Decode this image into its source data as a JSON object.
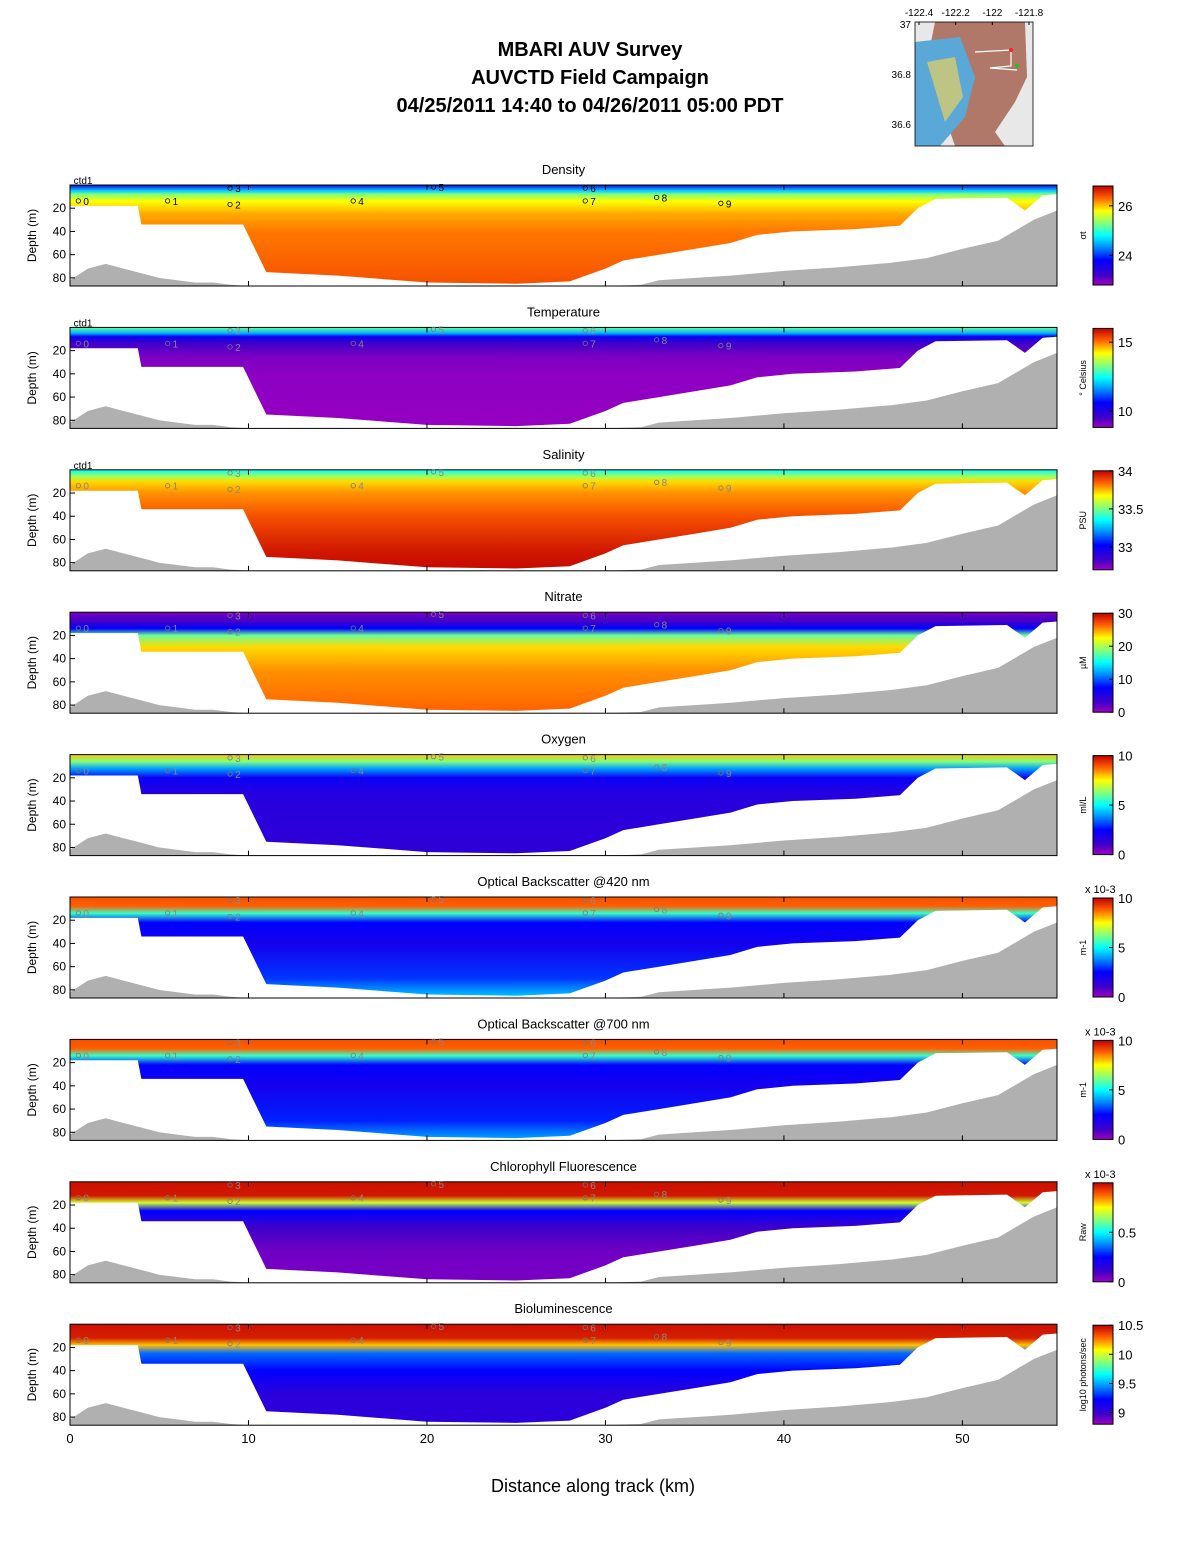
{
  "header": {
    "title_lines": [
      "MBARI AUV Survey",
      "AUVCTD Field Campaign",
      "04/25/2011 14:40  to 04/26/2011 05:00 PDT"
    ]
  },
  "inset_map": {
    "lon_ticks": [
      "-122.4",
      "-122.2",
      "-122",
      "-121.8"
    ],
    "lat_ticks": [
      "37",
      "36.8",
      "36.6"
    ]
  },
  "axes": {
    "ylabel": "Depth (m)",
    "xlabel": "Distance along track (km)",
    "xlim": [
      0,
      55.3
    ],
    "ylim": [
      0,
      87
    ],
    "x_ticks": [
      0,
      10,
      20,
      30,
      40,
      50
    ],
    "y_ticks": [
      20,
      40,
      60,
      80
    ]
  },
  "stations": [
    {
      "label": "ctd1",
      "km": 0.2,
      "depth": 0
    },
    {
      "label": "0",
      "km": 0.3,
      "depth": 12
    },
    {
      "label": "1",
      "km": 5.3,
      "depth": 12
    },
    {
      "label": "3",
      "km": 8.8,
      "depth": 1
    },
    {
      "label": "2",
      "km": 8.8,
      "depth": 15
    },
    {
      "label": "4",
      "km": 15.7,
      "depth": 12
    },
    {
      "label": "5",
      "km": 20.2,
      "depth": 0
    },
    {
      "label": "6",
      "km": 28.7,
      "depth": 1
    },
    {
      "label": "7",
      "km": 28.7,
      "depth": 12
    },
    {
      "label": "8",
      "km": 32.7,
      "depth": 9
    },
    {
      "label": "9",
      "km": 36.3,
      "depth": 14
    }
  ],
  "chart_data": [
    {
      "type": "heatmap",
      "title": "Density",
      "colorbar_label": "σt",
      "colorbar_ticks": [
        "26",
        "24"
      ],
      "colorbar_range": [
        22.8,
        26.8
      ]
    },
    {
      "type": "heatmap",
      "title": "Temperature",
      "colorbar_label": "° Celsius",
      "colorbar_ticks": [
        "15",
        "10"
      ],
      "colorbar_range": [
        8.8,
        16.0
      ]
    },
    {
      "type": "heatmap",
      "title": "Salinity",
      "colorbar_label": "PSU",
      "colorbar_ticks": [
        "34",
        "33.5",
        "33"
      ],
      "colorbar_range": [
        32.7,
        34.0
      ]
    },
    {
      "type": "heatmap",
      "title": "Nitrate",
      "colorbar_label": "µM",
      "colorbar_ticks": [
        "30",
        "20",
        "10",
        "0"
      ],
      "colorbar_range": [
        0,
        30
      ]
    },
    {
      "type": "heatmap",
      "title": "Oxygen",
      "colorbar_label": "ml/L",
      "colorbar_ticks": [
        "10",
        "5",
        "0"
      ],
      "colorbar_range": [
        0,
        10
      ]
    },
    {
      "type": "heatmap",
      "title": "Optical Backscatter @420 nm",
      "colorbar_label": "m-1",
      "colorbar_ticks": [
        "10",
        "5",
        "0"
      ],
      "colorbar_range": [
        0,
        10
      ],
      "colorbar_multiplier": "x 10-3"
    },
    {
      "type": "heatmap",
      "title": "Optical Backscatter @700 nm",
      "colorbar_label": "m-1",
      "colorbar_ticks": [
        "10",
        "5",
        "0"
      ],
      "colorbar_range": [
        0,
        10
      ],
      "colorbar_multiplier": "x 10-3"
    },
    {
      "type": "heatmap",
      "title": "Chlorophyll Fluorescence",
      "colorbar_label": "Raw",
      "colorbar_ticks": [
        "0.5",
        "0"
      ],
      "colorbar_range": [
        0,
        1.0
      ],
      "colorbar_multiplier": "x 10-3"
    },
    {
      "type": "heatmap",
      "title": "Bioluminescence",
      "colorbar_label": "log10 photons/sec",
      "colorbar_ticks": [
        "10.5",
        "10",
        "9.5",
        "9"
      ],
      "colorbar_range": [
        8.8,
        10.5
      ]
    }
  ],
  "survey_bottom_depth": [
    [
      0,
      18
    ],
    [
      3.8,
      18
    ],
    [
      4.0,
      34
    ],
    [
      9.7,
      34
    ],
    [
      11.0,
      75
    ],
    [
      15.0,
      78
    ],
    [
      20.0,
      84
    ],
    [
      25.0,
      85
    ],
    [
      28.0,
      83
    ],
    [
      30.0,
      72
    ],
    [
      31.0,
      65
    ],
    [
      33.0,
      60
    ],
    [
      35.0,
      55
    ],
    [
      37.0,
      50
    ],
    [
      38.5,
      43
    ],
    [
      40.5,
      40
    ],
    [
      44.0,
      38
    ],
    [
      46.5,
      35
    ],
    [
      47.5,
      20
    ],
    [
      48.5,
      12
    ],
    [
      52.5,
      11
    ],
    [
      53.5,
      22
    ],
    [
      54.5,
      9
    ],
    [
      55.3,
      8
    ]
  ],
  "seafloor_depth": [
    [
      0,
      82
    ],
    [
      1,
      72
    ],
    [
      2,
      68
    ],
    [
      3,
      72
    ],
    [
      4,
      76
    ],
    [
      5,
      80
    ],
    [
      6,
      82
    ],
    [
      7,
      84
    ],
    [
      8,
      84
    ],
    [
      9,
      86
    ],
    [
      10,
      87
    ],
    [
      13,
      87
    ],
    [
      20,
      87
    ],
    [
      25,
      87
    ],
    [
      30,
      87
    ],
    [
      32,
      86
    ],
    [
      33,
      82
    ],
    [
      35,
      80
    ],
    [
      37,
      78
    ],
    [
      40,
      74
    ],
    [
      43,
      71
    ],
    [
      46,
      67
    ],
    [
      48,
      63
    ],
    [
      50,
      55
    ],
    [
      52,
      48
    ],
    [
      54,
      30
    ],
    [
      55.3,
      22
    ]
  ],
  "color_profiles": [
    [
      [
        0,
        0.18
      ],
      [
        5,
        0.45
      ],
      [
        8,
        0.62
      ],
      [
        14,
        0.75
      ],
      [
        25,
        0.82
      ],
      [
        40,
        0.86
      ],
      [
        87,
        0.9
      ]
    ],
    [
      [
        0,
        0.6
      ],
      [
        5,
        0.42
      ],
      [
        8,
        0.22
      ],
      [
        14,
        0.1
      ],
      [
        25,
        0.04
      ],
      [
        40,
        0.02
      ],
      [
        87,
        0.01
      ]
    ],
    [
      [
        0,
        0.5
      ],
      [
        6,
        0.66
      ],
      [
        10,
        0.78
      ],
      [
        20,
        0.84
      ],
      [
        40,
        0.9
      ],
      [
        70,
        0.97
      ],
      [
        87,
        0.99
      ]
    ],
    [
      [
        0,
        0.04
      ],
      [
        8,
        0.1
      ],
      [
        14,
        0.25
      ],
      [
        20,
        0.6
      ],
      [
        30,
        0.78
      ],
      [
        50,
        0.84
      ],
      [
        87,
        0.88
      ]
    ],
    [
      [
        0,
        0.8
      ],
      [
        6,
        0.62
      ],
      [
        12,
        0.4
      ],
      [
        20,
        0.22
      ],
      [
        35,
        0.16
      ],
      [
        60,
        0.15
      ],
      [
        87,
        0.14
      ]
    ],
    [
      [
        0,
        0.9
      ],
      [
        8,
        0.88
      ],
      [
        14,
        0.55
      ],
      [
        22,
        0.25
      ],
      [
        40,
        0.2
      ],
      [
        70,
        0.3
      ],
      [
        87,
        0.45
      ]
    ],
    [
      [
        0,
        0.9
      ],
      [
        8,
        0.88
      ],
      [
        14,
        0.55
      ],
      [
        22,
        0.25
      ],
      [
        40,
        0.2
      ],
      [
        70,
        0.28
      ],
      [
        87,
        0.42
      ]
    ],
    [
      [
        0,
        0.98
      ],
      [
        12,
        0.97
      ],
      [
        18,
        0.7
      ],
      [
        25,
        0.25
      ],
      [
        40,
        0.1
      ],
      [
        60,
        0.05
      ],
      [
        87,
        0.04
      ]
    ],
    [
      [
        0,
        0.98
      ],
      [
        12,
        0.96
      ],
      [
        18,
        0.8
      ],
      [
        25,
        0.35
      ],
      [
        40,
        0.25
      ],
      [
        60,
        0.15
      ],
      [
        87,
        0.15
      ]
    ]
  ]
}
